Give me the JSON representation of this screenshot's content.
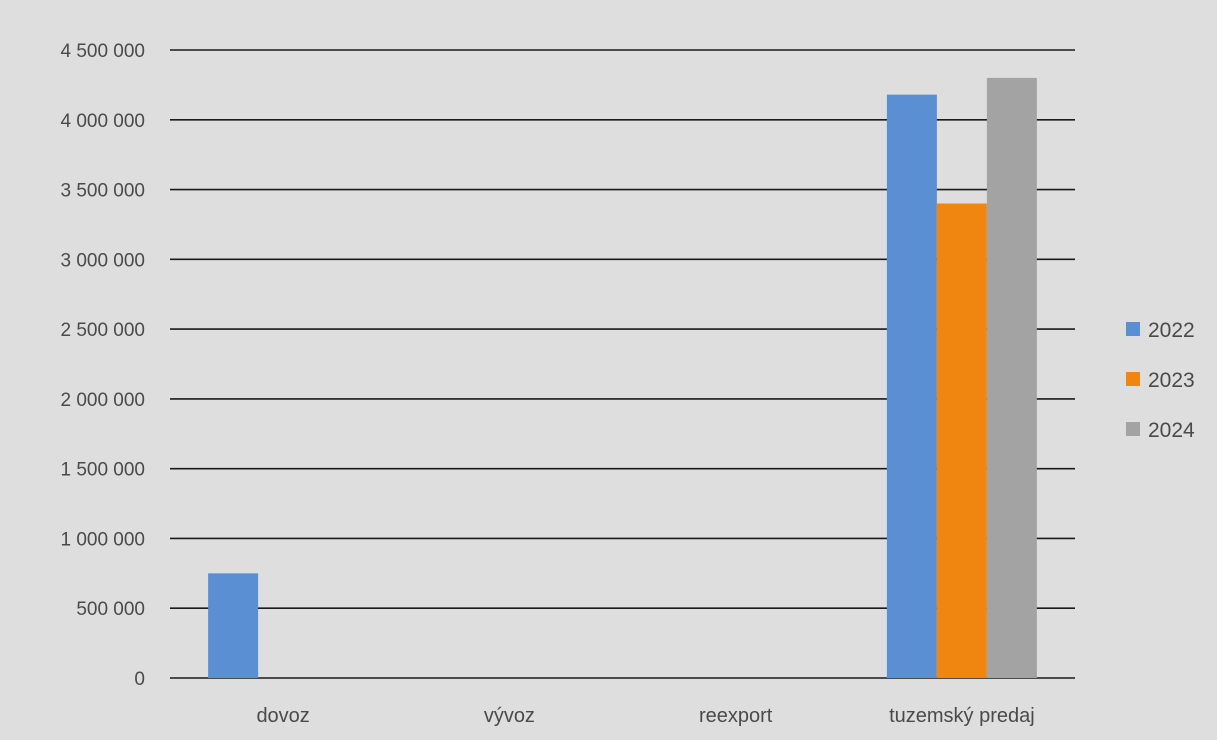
{
  "chart_data": {
    "type": "bar",
    "title": "",
    "xlabel": "",
    "ylabel": "",
    "categories": [
      "dovoz",
      "vývoz",
      "reexport",
      "tuzemský predaj"
    ],
    "series": [
      {
        "name": "2022",
        "color": "#5b8fd4",
        "values": [
          750000,
          0,
          0,
          4180000
        ]
      },
      {
        "name": "2023",
        "color": "#f0860f",
        "values": [
          0,
          0,
          0,
          3400000
        ]
      },
      {
        "name": "2024",
        "color": "#a3a3a3",
        "values": [
          0,
          0,
          0,
          4300000
        ]
      }
    ],
    "ylim": [
      0,
      4500000
    ],
    "yticks": [
      0,
      500000,
      1000000,
      1500000,
      2000000,
      2500000,
      3000000,
      3500000,
      4000000,
      4500000
    ],
    "ytick_labels": [
      "0",
      "500 000",
      "1 000 000",
      "1 500 000",
      "2 000 000",
      "2 500 000",
      "3 000 000",
      "3 500 000",
      "4 000 000",
      "4 500 000"
    ],
    "grid": true,
    "legend_position": "right"
  }
}
